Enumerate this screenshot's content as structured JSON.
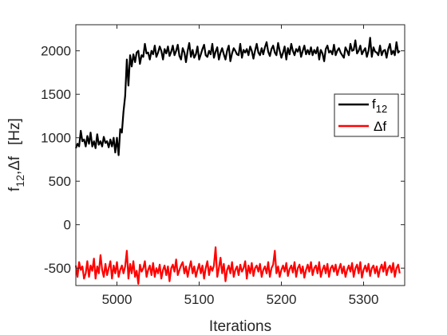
{
  "chart_data": {
    "type": "line",
    "title": "",
    "xlabel": "Iterations",
    "ylabel": {
      "main": "f",
      "sub": "12",
      "mid": ",Δf",
      "unit": "[Hz]"
    },
    "xlim": [
      4950,
      5350
    ],
    "ylim": [
      -700,
      2300
    ],
    "x_ticks": [
      5000,
      5100,
      5200,
      5300
    ],
    "y_ticks": [
      -500,
      0,
      500,
      1000,
      1500,
      2000
    ],
    "grid": false,
    "legend_position": "right",
    "series": [
      {
        "name": "f",
        "name_sub": "12",
        "color": "#000000",
        "x_start": 4950,
        "x_step": 2,
        "values": [
          880,
          930,
          900,
          1080,
          960,
          980,
          900,
          1020,
          930,
          1060,
          900,
          960,
          880,
          1040,
          920,
          960,
          900,
          1010,
          940,
          960,
          890,
          980,
          900,
          1000,
          830,
          1000,
          800,
          1100,
          1060,
          1300,
          1480,
          1900,
          1600,
          1950,
          1820,
          1960,
          1870,
          1980,
          2000,
          1850,
          1950,
          1930,
          2080,
          1970,
          1980,
          1900,
          2000,
          1960,
          2060,
          1930,
          1980,
          2050,
          2000,
          1900,
          2020,
          1970,
          2050,
          1940,
          1990,
          2060,
          1950,
          2000,
          2070,
          1940,
          1900,
          2030,
          1980,
          1870,
          2000,
          2090,
          1930,
          2010,
          1920,
          1960,
          2050,
          1900,
          1960,
          2020,
          2070,
          1950,
          1930,
          2000,
          1960,
          2080,
          1920,
          1990,
          2040,
          1900,
          1980,
          2030,
          1960,
          1900,
          2000,
          2060,
          1880,
          1970,
          2030,
          2000,
          1960,
          1950,
          2080,
          1920,
          2010,
          1980,
          2020,
          1950,
          2050,
          2000,
          1910,
          2000,
          2080,
          1980,
          1950,
          2030,
          1960,
          2040,
          2100,
          1990,
          1940,
          2020,
          2060,
          1980,
          1950,
          2090,
          2000,
          1920,
          1980,
          2050,
          1900,
          2030,
          1960,
          2080,
          2000,
          1950,
          2020,
          1990,
          2050,
          1930,
          2000,
          2060,
          1960,
          2010,
          1960,
          2040,
          1950,
          2010,
          1970,
          2040,
          1900,
          2010,
          1970,
          1880,
          2020,
          2060,
          1980,
          2000,
          1960,
          2070,
          1950,
          2000,
          2030,
          1980,
          1950,
          1920,
          2040,
          2000,
          1950,
          2080,
          2000,
          2010,
          2120,
          1970,
          2000,
          2060,
          1960,
          2000,
          2030,
          1930,
          2000,
          2150,
          1930,
          2040,
          1990,
          1980,
          1950,
          2060,
          1950,
          2000,
          2010,
          1920,
          2020,
          2080,
          1960,
          2000,
          1950,
          2100,
          1980,
          2000
        ]
      },
      {
        "name": "Δf",
        "color": "#ff0000",
        "x_start": 4950,
        "x_step": 2,
        "values": [
          -470,
          -600,
          -430,
          -520,
          -480,
          -620,
          -560,
          -420,
          -600,
          -470,
          -530,
          -390,
          -620,
          -480,
          -560,
          -350,
          -520,
          -600,
          -450,
          -580,
          -500,
          -420,
          -620,
          -470,
          -560,
          -430,
          -600,
          -520,
          -470,
          -560,
          -480,
          -300,
          -620,
          -450,
          -560,
          -420,
          -600,
          -530,
          -680,
          -460,
          -540,
          -500,
          -420,
          -600,
          -520,
          -470,
          -580,
          -440,
          -600,
          -500,
          -560,
          -460,
          -620,
          -520,
          -470,
          -580,
          -480,
          -650,
          -500,
          -460,
          -540,
          -400,
          -580,
          -520,
          -470,
          -430,
          -560,
          -480,
          -600,
          -500,
          -420,
          -560,
          -480,
          -600,
          -520,
          -450,
          -560,
          -470,
          -620,
          -500,
          -420,
          -580,
          -480,
          -530,
          -470,
          -260,
          -600,
          -500,
          -380,
          -560,
          -450,
          -650,
          -520,
          -470,
          -560,
          -430,
          -600,
          -520,
          -480,
          -580,
          -460,
          -540,
          -500,
          -420,
          -620,
          -470,
          -560,
          -440,
          -590,
          -500,
          -470,
          -540,
          -450,
          -600,
          -520,
          -480,
          -560,
          -430,
          -600,
          -500,
          -460,
          -300,
          -560,
          -480,
          -600,
          -520,
          -470,
          -540,
          -440,
          -590,
          -510,
          -470,
          -550,
          -430,
          -600,
          -500,
          -460,
          -560,
          -480,
          -610,
          -520,
          -460,
          -540,
          -430,
          -580,
          -500,
          -470,
          -560,
          -430,
          -600,
          -520,
          -470,
          -560,
          -450,
          -600,
          -500,
          -470,
          -540,
          -460,
          -580,
          -510,
          -450,
          -560,
          -480,
          -600,
          -520,
          -470,
          -540,
          -440,
          -600,
          -500,
          -460,
          -560,
          -430,
          -610,
          -520,
          -470,
          -540,
          -450,
          -590,
          -500,
          -470,
          -560,
          -480,
          -600,
          -510,
          -460,
          -540,
          -430,
          -580,
          -500,
          -470,
          -550,
          -440,
          -600,
          -500,
          -460,
          -560
        ]
      }
    ]
  }
}
